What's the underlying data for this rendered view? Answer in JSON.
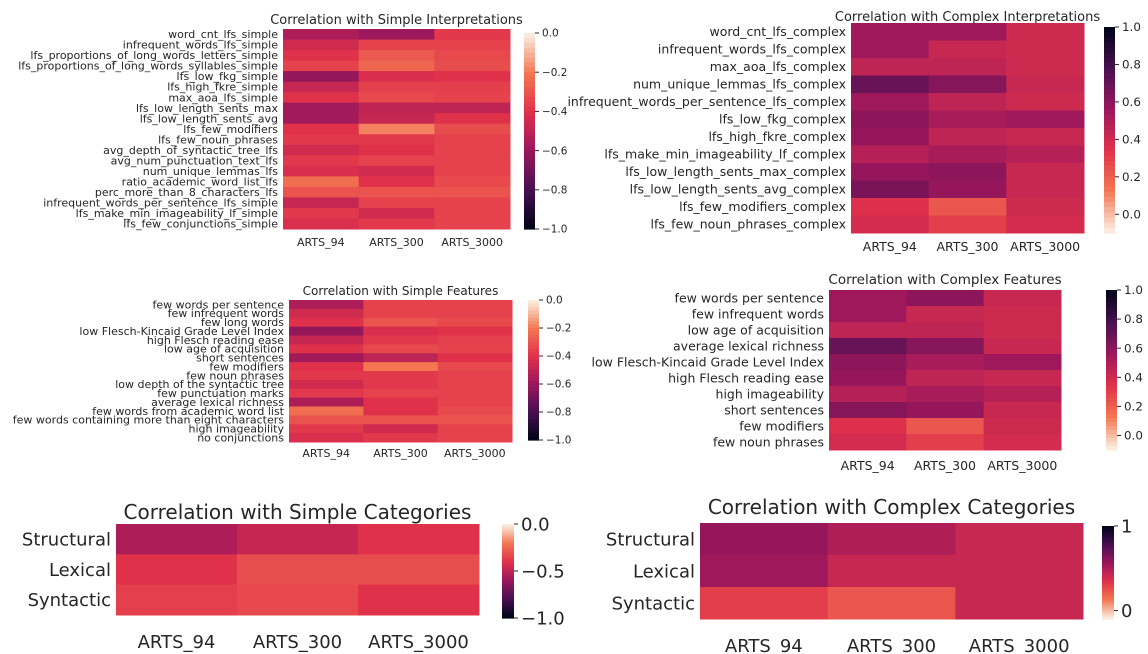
{
  "chart_data": [
    {
      "type": "heatmap",
      "title": "Correlation with Simple Interpretations",
      "columns": [
        "ARTS_94",
        "ARTS_300",
        "ARTS_3000"
      ],
      "rows": [
        "word_cnt_lfs_simple",
        "infrequent_words_lfs_simple",
        "lfs_proportions_of_long_words_letters_simple",
        "lfs_proportions_of_long_words_syllables_simple",
        "lfs_low_fkg_simple",
        "lfs_high_fkre_simple",
        "max_aoa_lfs_simple",
        "lfs_low_length_sents_max",
        "lfs_low_length_sents_avg",
        "lfs_few_modifiers",
        "lfs_few_noun_phrases",
        "avg_depth_of_syntactic_tree_lfs",
        "avg_num_punctuation_text_lfs",
        "num_unique_lemmas_lfs",
        "ratio_academic_word_list_lfs",
        "perc_more_than_8_characters_lfs",
        "infrequent_words_per_sentence_lfs_simple",
        "lfs_make_min_imageability_lf_simple",
        "lfs_few_conjunctions_simple"
      ],
      "values": [
        [
          -0.55,
          -0.6,
          -0.38
        ],
        [
          -0.45,
          -0.35,
          -0.35
        ],
        [
          -0.4,
          -0.28,
          -0.33
        ],
        [
          -0.35,
          -0.25,
          -0.32
        ],
        [
          -0.62,
          -0.42,
          -0.4
        ],
        [
          -0.48,
          -0.36,
          -0.36
        ],
        [
          -0.4,
          -0.33,
          -0.35
        ],
        [
          -0.58,
          -0.5,
          -0.5
        ],
        [
          -0.58,
          -0.48,
          -0.4
        ],
        [
          -0.4,
          -0.18,
          -0.32
        ],
        [
          -0.38,
          -0.38,
          -0.35
        ],
        [
          -0.45,
          -0.4,
          -0.35
        ],
        [
          -0.38,
          -0.35,
          -0.35
        ],
        [
          -0.42,
          -0.45,
          -0.35
        ],
        [
          -0.22,
          -0.4,
          -0.33
        ],
        [
          -0.3,
          -0.3,
          -0.3
        ],
        [
          -0.48,
          -0.35,
          -0.35
        ],
        [
          -0.38,
          -0.45,
          -0.35
        ],
        [
          -0.42,
          -0.38,
          -0.35
        ]
      ],
      "colorbar": {
        "ticks": [
          "0.0",
          "−0.2",
          "−0.4",
          "−0.6",
          "−0.8",
          "−1.0"
        ],
        "min": -1.0,
        "max": 0.0
      }
    },
    {
      "type": "heatmap",
      "title": "Correlation with Complex Interpretations",
      "columns": [
        "ARTS_94",
        "ARTS_300",
        "ARTS_3000"
      ],
      "rows": [
        "word_cnt_lfs_complex",
        "infrequent_words_lfs_complex",
        "max_aoa_lfs_complex",
        "num_unique_lemmas_lfs_complex",
        "infrequent_words_per_sentence_lfs_complex",
        "lfs_low_fkg_complex",
        "lfs_high_fkre_complex",
        "lfs_make_min_imageability_lf_complex",
        "lfs_low_length_sents_max_complex",
        "lfs_low_length_sents_avg_complex",
        "lfs_few_modifiers_complex",
        "lfs_few_noun_phrases_complex"
      ],
      "values": [
        [
          0.55,
          0.55,
          0.4
        ],
        [
          0.55,
          0.42,
          0.4
        ],
        [
          0.45,
          0.45,
          0.4
        ],
        [
          0.7,
          0.62,
          0.42
        ],
        [
          0.55,
          0.45,
          0.4
        ],
        [
          0.6,
          0.52,
          0.55
        ],
        [
          0.58,
          0.45,
          0.42
        ],
        [
          0.48,
          0.52,
          0.48
        ],
        [
          0.58,
          0.6,
          0.42
        ],
        [
          0.65,
          0.58,
          0.42
        ],
        [
          0.35,
          0.22,
          0.4
        ],
        [
          0.38,
          0.3,
          0.38
        ]
      ],
      "colorbar": {
        "ticks": [
          "1.0",
          "0.8",
          "0.6",
          "0.4",
          "0.2",
          "0.0"
        ],
        "min": -0.1,
        "max": 1.0
      }
    },
    {
      "type": "heatmap",
      "title": "Correlation with Simple Features",
      "columns": [
        "ARTS_94",
        "ARTS_300",
        "ARTS_3000"
      ],
      "rows": [
        "few words per sentence",
        "few infrequent words",
        "few long words",
        "low Flesch-Kincaid Grade Level Index",
        "high Flesch reading ease",
        "low age of acquisition",
        "short sentences",
        "few modifiers",
        "few noun phrases",
        "low depth of the syntactic tree",
        "few punctuation marks",
        "average lexical richness",
        "few words from academic word list",
        "few words containing more than eight characters",
        "high imageability",
        "no conjunctions"
      ],
      "values": [
        [
          -0.55,
          -0.35,
          -0.35
        ],
        [
          -0.45,
          -0.35,
          -0.35
        ],
        [
          -0.4,
          -0.3,
          -0.33
        ],
        [
          -0.62,
          -0.42,
          -0.4
        ],
        [
          -0.48,
          -0.38,
          -0.36
        ],
        [
          -0.4,
          -0.33,
          -0.35
        ],
        [
          -0.58,
          -0.5,
          -0.4
        ],
        [
          -0.4,
          -0.2,
          -0.33
        ],
        [
          -0.38,
          -0.38,
          -0.35
        ],
        [
          -0.45,
          -0.38,
          -0.35
        ],
        [
          -0.38,
          -0.35,
          -0.35
        ],
        [
          -0.55,
          -0.4,
          -0.35
        ],
        [
          -0.22,
          -0.4,
          -0.33
        ],
        [
          -0.3,
          -0.3,
          -0.3
        ],
        [
          -0.38,
          -0.45,
          -0.35
        ],
        [
          -0.42,
          -0.38,
          -0.35
        ]
      ],
      "colorbar": {
        "ticks": [
          "0.0",
          "−0.2",
          "−0.4",
          "−0.6",
          "−0.8",
          "−1.0"
        ],
        "min": -1.0,
        "max": 0.0
      }
    },
    {
      "type": "heatmap",
      "title": "Correlation with Complex Features",
      "columns": [
        "ARTS_94",
        "ARTS_300",
        "ARTS_3000"
      ],
      "rows": [
        "few words per sentence",
        "few infrequent words",
        "low age of acquisition",
        "average lexical richness",
        "low Flesch-Kincaid Grade Level Index",
        "high Flesch reading ease",
        "high imageability",
        "short sentences",
        "few modifiers",
        "few noun phrases"
      ],
      "values": [
        [
          0.55,
          0.6,
          0.42
        ],
        [
          0.55,
          0.42,
          0.4
        ],
        [
          0.45,
          0.45,
          0.4
        ],
        [
          0.7,
          0.62,
          0.42
        ],
        [
          0.6,
          0.52,
          0.55
        ],
        [
          0.58,
          0.45,
          0.42
        ],
        [
          0.48,
          0.52,
          0.48
        ],
        [
          0.62,
          0.58,
          0.42
        ],
        [
          0.35,
          0.22,
          0.4
        ],
        [
          0.38,
          0.3,
          0.38
        ]
      ],
      "colorbar": {
        "ticks": [
          "1.0",
          "0.8",
          "0.6",
          "0.4",
          "0.2",
          "0.0"
        ],
        "min": -0.1,
        "max": 1.0
      }
    },
    {
      "type": "heatmap",
      "title": "Correlation with Simple Categories",
      "columns": [
        "ARTS_94",
        "ARTS_300",
        "ARTS_3000"
      ],
      "rows": [
        "Structural",
        "Lexical",
        "Syntactic"
      ],
      "values": [
        [
          -0.55,
          -0.48,
          -0.4
        ],
        [
          -0.4,
          -0.32,
          -0.32
        ],
        [
          -0.36,
          -0.33,
          -0.4
        ]
      ],
      "colorbar": {
        "ticks": [
          "0.0",
          "−0.5",
          "−1.0"
        ],
        "min": -1.0,
        "max": 0.0
      }
    },
    {
      "type": "heatmap",
      "title": "Correlation with Complex Categories",
      "columns": [
        "ARTS_94",
        "ARTS_300",
        "ARTS_3000"
      ],
      "rows": [
        "Structural",
        "Lexical",
        "Syntactic"
      ],
      "values": [
        [
          0.58,
          0.5,
          0.42
        ],
        [
          0.55,
          0.42,
          0.42
        ],
        [
          0.3,
          0.22,
          0.42
        ]
      ],
      "colorbar": {
        "ticks": [
          "1",
          "0"
        ],
        "min": -0.1,
        "max": 1.0
      }
    }
  ]
}
